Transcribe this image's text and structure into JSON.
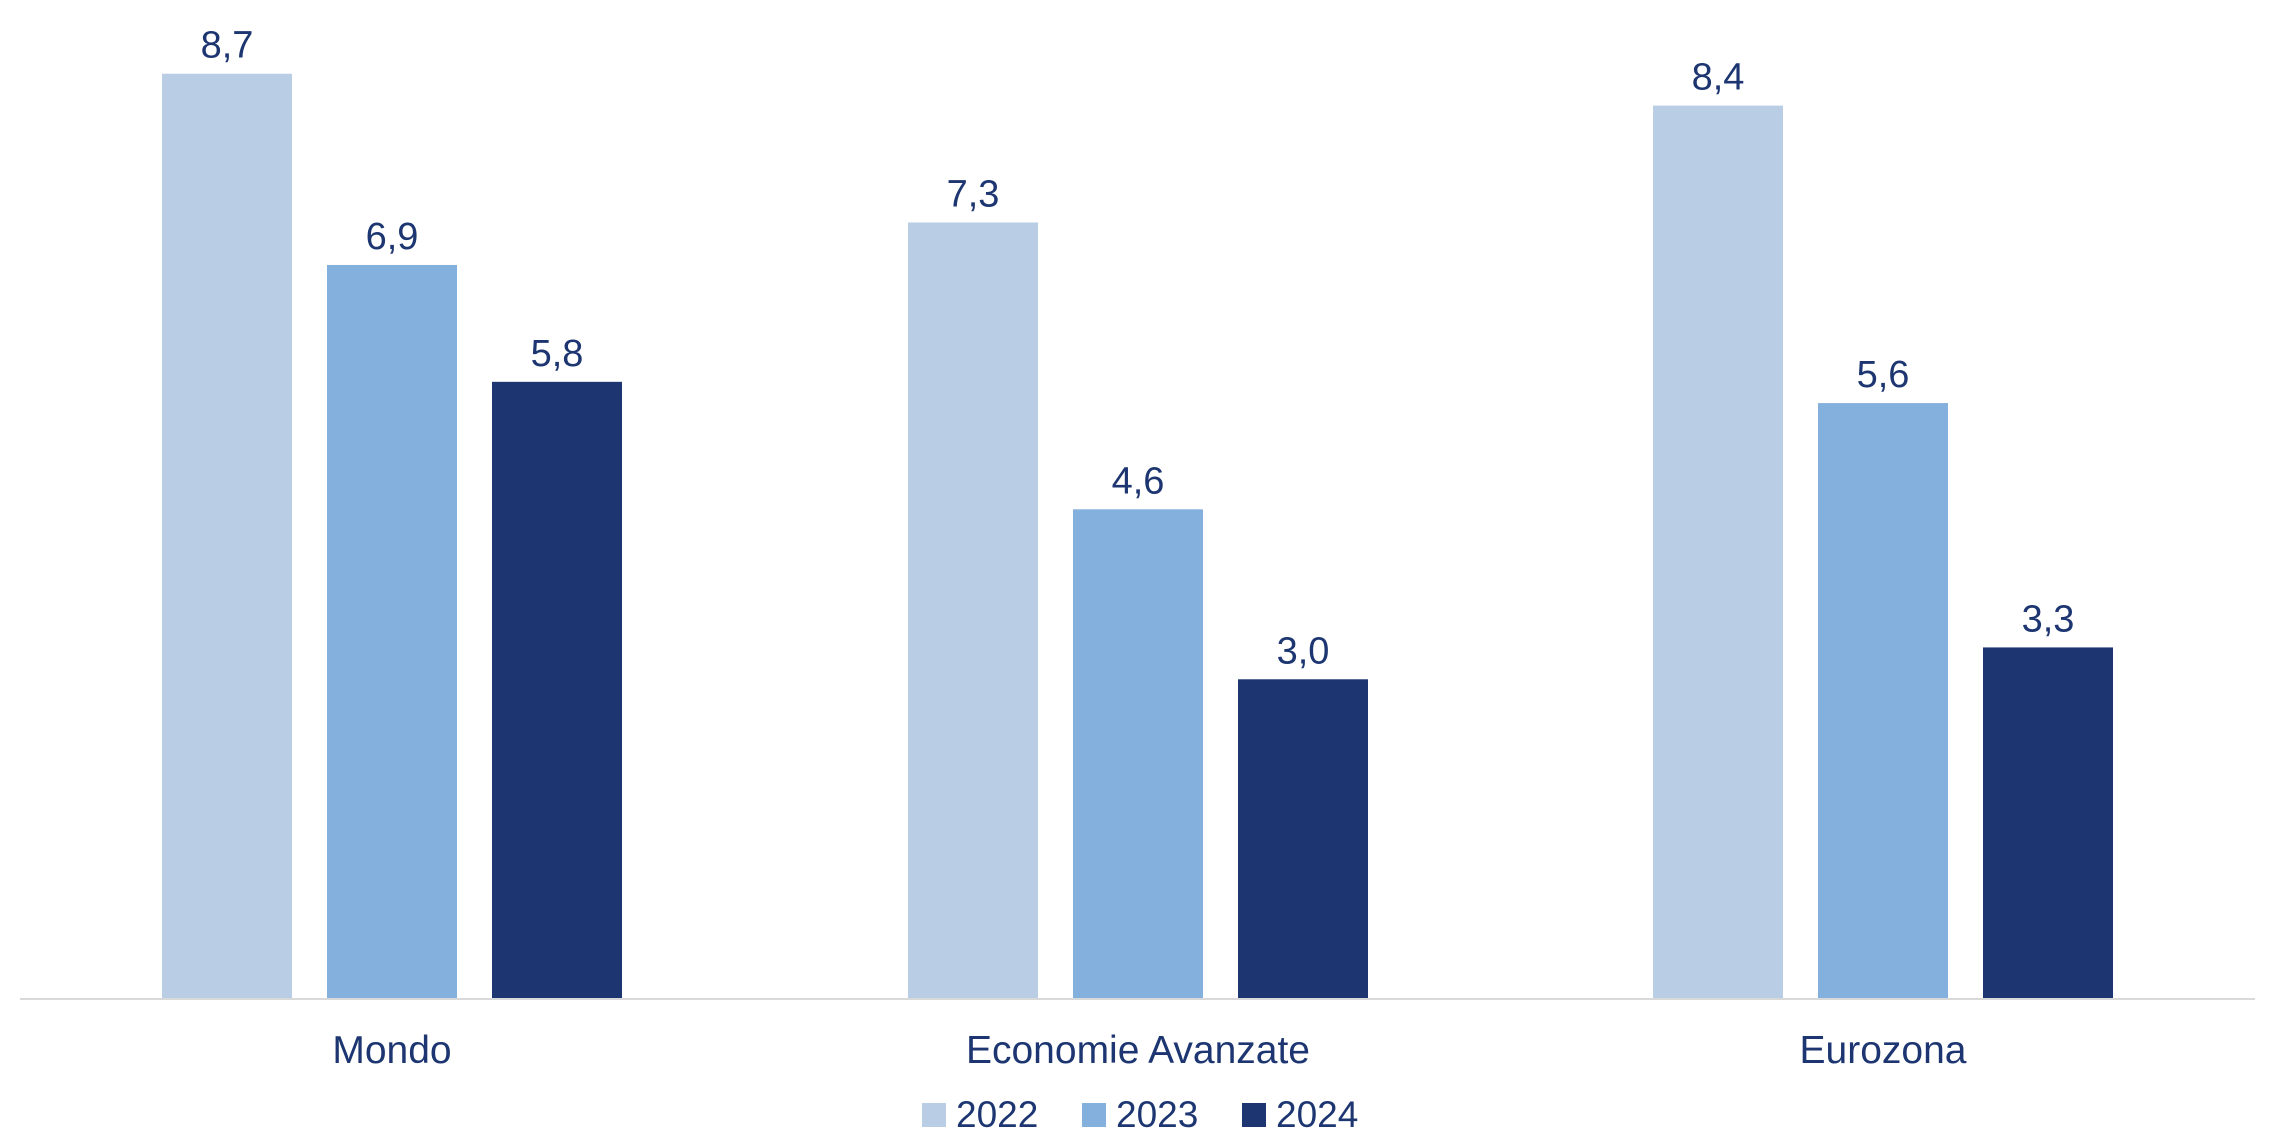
{
  "chart_data": {
    "type": "bar",
    "categories": [
      "Mondo",
      "Economie Avanzate",
      "Eurozona"
    ],
    "series": [
      {
        "name": "2022",
        "values": [
          8.7,
          7.3,
          8.4
        ],
        "value_labels": [
          "8,7",
          "7,3",
          "8,4"
        ],
        "color": "#b9cde5"
      },
      {
        "name": "2023",
        "values": [
          6.9,
          4.6,
          5.6
        ],
        "value_labels": [
          "6,9",
          "4,6",
          "5,6"
        ],
        "color": "#83b0dc"
      },
      {
        "name": "2024",
        "values": [
          5.8,
          3.0,
          3.3
        ],
        "value_labels": [
          "5,8",
          "3,0",
          "3,3"
        ],
        "color": "#1d3671"
      }
    ],
    "ylim": [
      0,
      9.3
    ],
    "grid": false,
    "legend_position": "bottom-center",
    "title": "",
    "xlabel": "",
    "ylabel": ""
  },
  "colors": {
    "text": "#1d3671",
    "axis": "#d9d9d9"
  }
}
